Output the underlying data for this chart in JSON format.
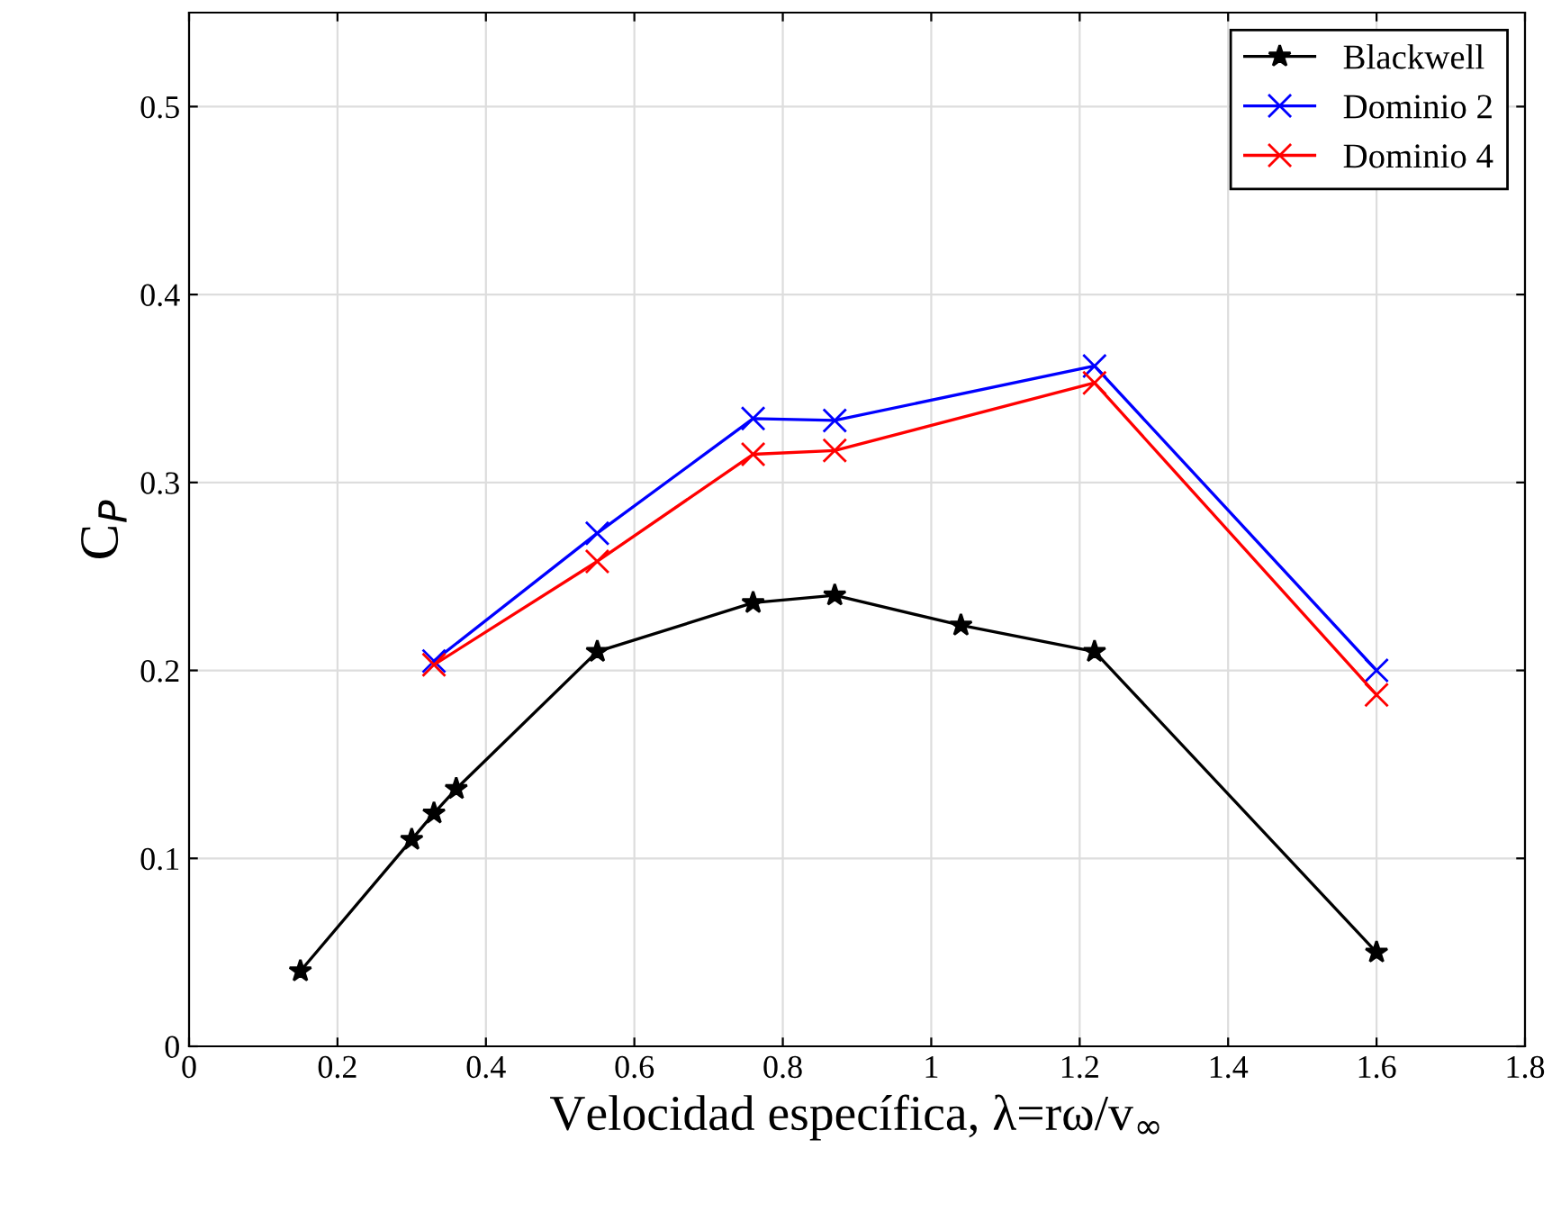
{
  "chart_data": {
    "type": "line",
    "xlabel": "Velocidad específica, λ=rω/v$_{∞}$",
    "ylabel": "C$_{P}$",
    "xlim": [
      0,
      1.8
    ],
    "ylim": [
      0,
      0.55
    ],
    "xticks": [
      0,
      0.2,
      0.4,
      0.6,
      0.8,
      1,
      1.2,
      1.4,
      1.6,
      1.8
    ],
    "yticks": [
      0,
      0.1,
      0.2,
      0.3,
      0.4,
      0.5
    ],
    "grid": true,
    "legend": "top right",
    "line_style": "solid",
    "series": [
      {
        "name": "Blackwell",
        "color": "#000000",
        "marker": "star",
        "x": [
          0.15,
          0.3,
          0.33,
          0.36,
          0.55,
          0.76,
          0.87,
          1.04,
          1.22,
          1.6
        ],
        "values": [
          0.04,
          0.11,
          0.124,
          0.137,
          0.21,
          0.236,
          0.24,
          0.224,
          0.21,
          0.05
        ]
      },
      {
        "name": "Dominio 2",
        "color": "#0000ff",
        "marker": "cross",
        "x": [
          0.33,
          0.55,
          0.76,
          0.87,
          1.22,
          1.6
        ],
        "values": [
          0.205,
          0.273,
          0.334,
          0.333,
          0.362,
          0.2
        ]
      },
      {
        "name": "Dominio 4",
        "color": "#ff0000",
        "marker": "cross",
        "x": [
          0.33,
          0.55,
          0.76,
          0.87,
          1.22,
          1.6
        ],
        "values": [
          0.203,
          0.258,
          0.315,
          0.317,
          0.353,
          0.187
        ]
      }
    ]
  }
}
